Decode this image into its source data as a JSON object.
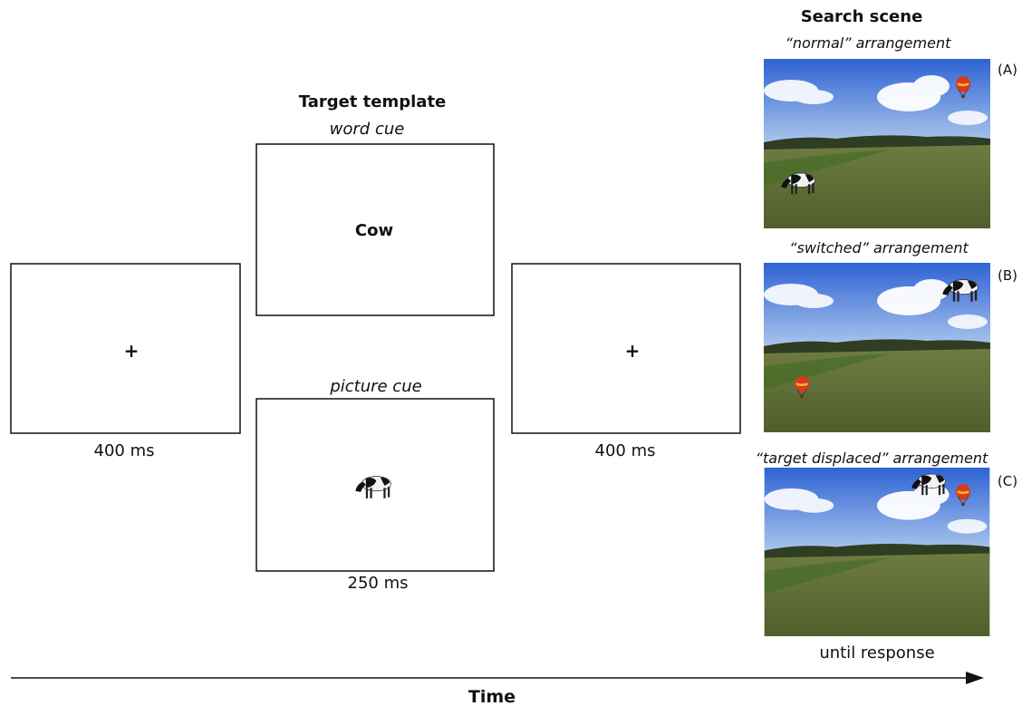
{
  "target_template": {
    "title": "Target template",
    "word_cue": {
      "label": "word cue",
      "word": "Cow"
    },
    "picture_cue": {
      "label": "picture cue"
    },
    "duration": "250 ms"
  },
  "fixation_frames": [
    {
      "symbol": "+",
      "duration": "400 ms"
    },
    {
      "symbol": "+",
      "duration": "400 ms"
    }
  ],
  "search_scene": {
    "title": "Search scene",
    "arrangements": [
      {
        "label": "“normal” arrangement",
        "tag": "(A)"
      },
      {
        "label": "“switched” arrangement",
        "tag": "(B)"
      },
      {
        "label": "“target displaced” arrangement",
        "tag": "(C)"
      }
    ],
    "duration": "until response"
  },
  "timeline": {
    "label": "Time"
  }
}
